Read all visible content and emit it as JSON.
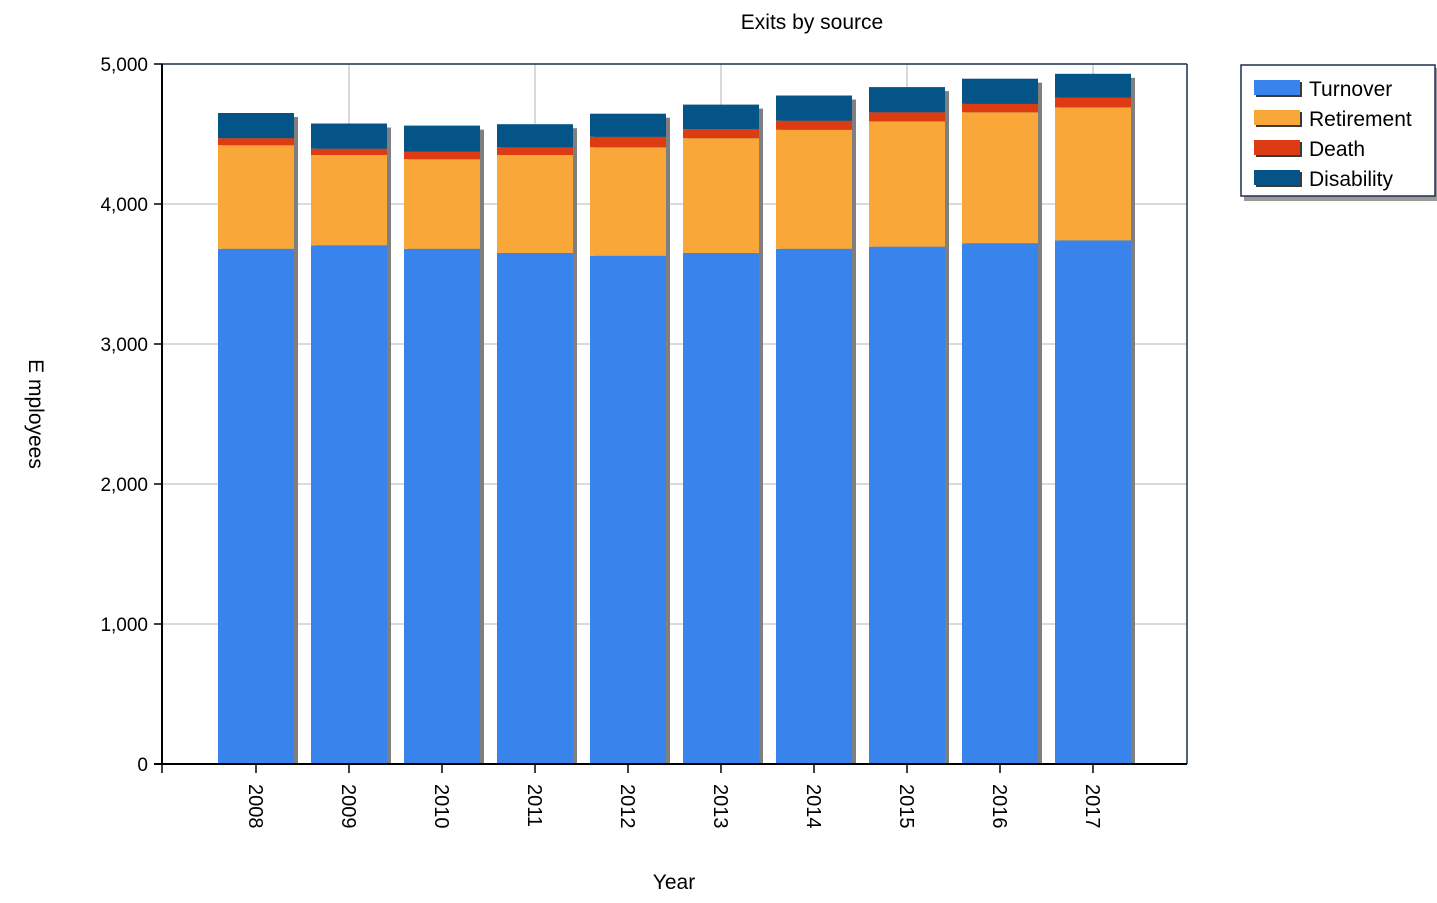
{
  "chart_data": {
    "type": "bar",
    "stacked": true,
    "title": "Exits by source",
    "xlabel": "Year",
    "ylabel": "E mployees",
    "categories": [
      "2008",
      "2009",
      "2010",
      "2011",
      "2012",
      "2013",
      "2014",
      "2015",
      "2016",
      "2017"
    ],
    "series": [
      {
        "name": "Turnover",
        "color": "#3884ec",
        "values": [
          3680,
          3705,
          3680,
          3650,
          3630,
          3650,
          3680,
          3695,
          3720,
          3740
        ]
      },
      {
        "name": "Retirement",
        "color": "#faa73a",
        "values": [
          740,
          645,
          640,
          700,
          775,
          820,
          850,
          895,
          935,
          950
        ]
      },
      {
        "name": "Death",
        "color": "#dd3c12",
        "values": [
          50,
          45,
          55,
          55,
          75,
          65,
          65,
          65,
          60,
          70
        ]
      },
      {
        "name": "Disability",
        "color": "#055487",
        "values": [
          180,
          180,
          185,
          165,
          165,
          175,
          180,
          180,
          180,
          170
        ]
      }
    ],
    "ylim": [
      0,
      5000
    ],
    "yticks": [
      0,
      1000,
      2000,
      3000,
      4000,
      5000
    ],
    "ytick_labels": [
      "0",
      "1,000",
      "2,000",
      "3,000",
      "4,000",
      "5,000"
    ],
    "grid": true,
    "legend_position": "top-right"
  }
}
